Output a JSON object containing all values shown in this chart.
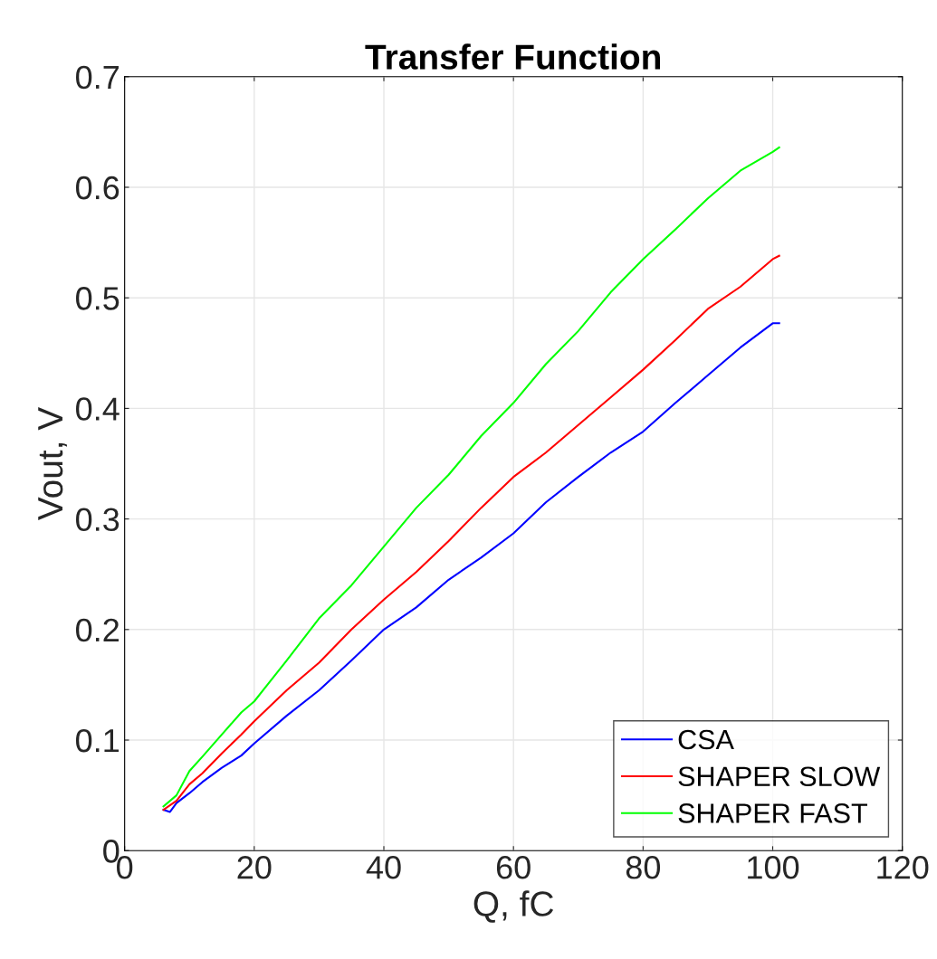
{
  "chart_data": {
    "type": "line",
    "title": "Transfer Function",
    "xlabel": "Q, fC",
    "ylabel": "Vout, V",
    "xlim": [
      0,
      120
    ],
    "ylim": [
      0,
      0.7
    ],
    "xticks": [
      0,
      20,
      40,
      60,
      80,
      100,
      120
    ],
    "yticks": [
      0,
      0.1,
      0.2,
      0.3,
      0.4,
      0.5,
      0.6,
      0.7
    ],
    "grid": true,
    "legend": "bottom right",
    "marker": "none",
    "line_style": "solid",
    "series": [
      {
        "name": "CSA",
        "color": "#0000ff",
        "x": [
          6,
          7,
          8,
          10,
          12,
          15,
          18,
          20,
          25,
          30,
          35,
          40,
          45,
          50,
          55,
          60,
          65,
          70,
          75,
          80,
          85,
          90,
          95,
          100,
          101
        ],
        "values": [
          0.037,
          0.035,
          0.043,
          0.052,
          0.062,
          0.075,
          0.086,
          0.097,
          0.122,
          0.145,
          0.172,
          0.2,
          0.22,
          0.245,
          0.265,
          0.287,
          0.315,
          0.338,
          0.36,
          0.379,
          0.405,
          0.43,
          0.455,
          0.477,
          0.477
        ]
      },
      {
        "name": "SHAPER SLOW",
        "color": "#ff0000",
        "x": [
          6,
          8,
          10,
          12,
          15,
          18,
          20,
          25,
          30,
          35,
          40,
          45,
          50,
          55,
          60,
          65,
          70,
          75,
          80,
          85,
          90,
          95,
          100,
          101
        ],
        "values": [
          0.037,
          0.045,
          0.06,
          0.07,
          0.088,
          0.105,
          0.117,
          0.145,
          0.17,
          0.2,
          0.227,
          0.252,
          0.28,
          0.31,
          0.338,
          0.36,
          0.385,
          0.41,
          0.435,
          0.462,
          0.49,
          0.51,
          0.535,
          0.538
        ]
      },
      {
        "name": "SHAPER FAST",
        "color": "#00ff00",
        "x": [
          6,
          8,
          10,
          12,
          15,
          18,
          20,
          25,
          30,
          35,
          40,
          45,
          50,
          55,
          60,
          65,
          70,
          75,
          80,
          85,
          90,
          95,
          100,
          101
        ],
        "values": [
          0.04,
          0.05,
          0.072,
          0.085,
          0.105,
          0.125,
          0.135,
          0.172,
          0.21,
          0.24,
          0.275,
          0.31,
          0.34,
          0.375,
          0.405,
          0.44,
          0.47,
          0.505,
          0.535,
          0.562,
          0.59,
          0.615,
          0.632,
          0.636
        ]
      }
    ]
  }
}
